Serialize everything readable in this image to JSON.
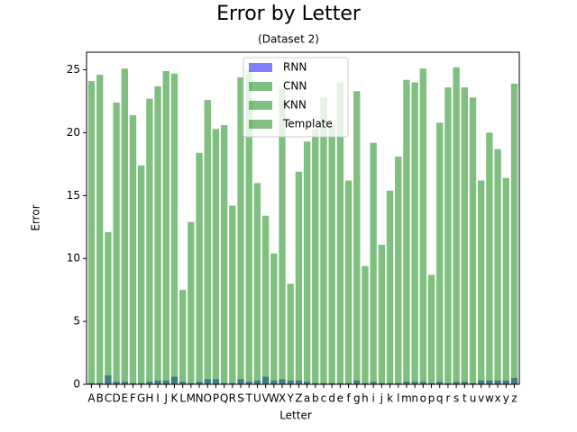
{
  "chart_data": {
    "type": "bar",
    "title": "Error by Letter",
    "subtitle": "(Dataset 2)",
    "x_label": "Letter",
    "y_label": "Error",
    "categories": [
      "A",
      "B",
      "C",
      "D",
      "E",
      "F",
      "G",
      "H",
      "I",
      "J",
      "K",
      "L",
      "M",
      "N",
      "O",
      "P",
      "Q",
      "R",
      "S",
      "T",
      "U",
      "V",
      "W",
      "X",
      "Y",
      "Z",
      "a",
      "b",
      "c",
      "d",
      "e",
      "f",
      "g",
      "h",
      "i",
      "j",
      "k",
      "l",
      "m",
      "n",
      "o",
      "p",
      "q",
      "r",
      "s",
      "t",
      "u",
      "v",
      "w",
      "x",
      "y",
      "z"
    ],
    "series": [
      {
        "name": "RNN",
        "color": "#0000ff",
        "values": [
          0.1,
          0.1,
          0.7,
          0.2,
          0.2,
          0.1,
          0.1,
          0.2,
          0.3,
          0.3,
          0.6,
          0.2,
          0.1,
          0.2,
          0.4,
          0.4,
          0.1,
          0.1,
          0.4,
          0.2,
          0.3,
          0.6,
          0.3,
          0.4,
          0.3,
          0.3,
          0.2,
          0.1,
          0.1,
          0.1,
          0.1,
          0.1,
          0.3,
          0.1,
          0.2,
          0.1,
          0.1,
          0.1,
          0.2,
          0.2,
          0.2,
          0.1,
          0.2,
          0.1,
          0.2,
          0.2,
          0.1,
          0.3,
          0.3,
          0.3,
          0.3,
          0.5
        ]
      },
      {
        "name": "CNN",
        "color": "#008000",
        "values": [
          0,
          0,
          0,
          0,
          0,
          0,
          0,
          0,
          0,
          0,
          0,
          0,
          0,
          0,
          0,
          0,
          0,
          0,
          0,
          0,
          0,
          0,
          0,
          0,
          0,
          0,
          0,
          0,
          0,
          0,
          0,
          0,
          0,
          0,
          0,
          0,
          0,
          0,
          0,
          0,
          0,
          0,
          0,
          0,
          0,
          0,
          0,
          0,
          0,
          0,
          0,
          0
        ]
      },
      {
        "name": "KNN",
        "color": "#008000",
        "values": [
          0,
          0,
          0,
          0,
          0,
          0,
          0,
          0,
          0,
          0,
          0,
          0,
          0,
          0,
          0,
          0,
          0,
          0,
          0,
          0,
          0,
          0,
          0,
          0,
          0,
          0,
          0,
          0,
          0,
          0,
          0,
          0,
          0,
          0,
          0,
          0,
          0,
          0,
          0,
          0,
          0,
          0,
          0,
          0,
          0,
          0,
          0,
          0,
          0,
          0,
          0,
          0
        ]
      },
      {
        "name": "Template",
        "color": "#008000",
        "values": [
          24.1,
          24.6,
          12.1,
          22.4,
          25.1,
          21.4,
          17.4,
          22.7,
          23.7,
          24.9,
          24.7,
          7.5,
          12.9,
          18.4,
          22.6,
          20.3,
          20.6,
          14.2,
          24.4,
          24.9,
          16.0,
          13.4,
          10.4,
          23.5,
          8.0,
          16.9,
          19.3,
          20.3,
          22.8,
          20.7,
          24.0,
          16.2,
          23.3,
          9.4,
          19.2,
          11.1,
          15.4,
          18.1,
          24.2,
          24.0,
          25.1,
          8.7,
          20.8,
          23.6,
          25.2,
          23.6,
          22.8,
          16.2,
          20.0,
          18.7,
          16.4,
          23.9
        ]
      }
    ],
    "ylim": [
      0,
      26.4
    ],
    "yticks": [
      0,
      5,
      10,
      15,
      20,
      25
    ],
    "legend": "upper center"
  }
}
